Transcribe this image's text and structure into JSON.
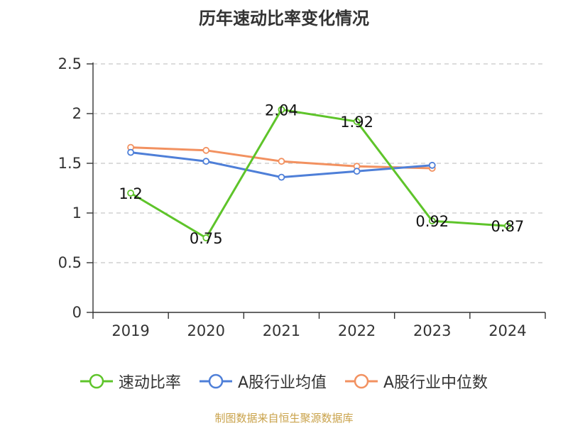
{
  "chart_data": {
    "type": "line",
    "title": "历年速动比率变化情况",
    "categories": [
      "2019",
      "2020",
      "2021",
      "2022",
      "2023",
      "2024"
    ],
    "y_ticks": [
      "0",
      "0.5",
      "1",
      "1.5",
      "2",
      "2.5"
    ],
    "ylim": [
      0,
      2.5
    ],
    "grid": true,
    "legend_position": "bottom",
    "series": [
      {
        "name": "速动比率",
        "color": "#5ec42a",
        "values": [
          1.2,
          0.75,
          2.04,
          1.92,
          0.92,
          0.87
        ],
        "labels": [
          "1.2",
          "0.75",
          "2.04",
          "1.92",
          "0.92",
          "0.87"
        ]
      },
      {
        "name": "A股行业均值",
        "color": "#4e7fd8",
        "values": [
          1.61,
          1.52,
          1.36,
          1.42,
          1.48,
          null
        ]
      },
      {
        "name": "A股行业中位数",
        "color": "#f29160",
        "values": [
          1.66,
          1.63,
          1.52,
          1.47,
          1.45,
          null
        ]
      }
    ]
  },
  "source": "制图数据来自恒生聚源数据库"
}
